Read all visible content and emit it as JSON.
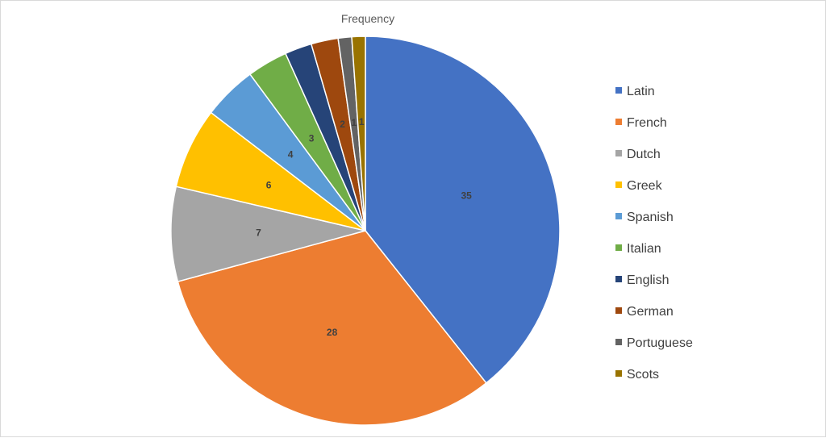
{
  "chart_data": {
    "type": "pie",
    "title": "Frequency",
    "categories": [
      "Latin",
      "French",
      "Dutch",
      "Greek",
      "Spanish",
      "Italian",
      "English",
      "German",
      "Portuguese",
      "Scots"
    ],
    "values": [
      35,
      28,
      7,
      6,
      4,
      3,
      2,
      2,
      1,
      1
    ],
    "data_labels": [
      "35",
      "28",
      "7",
      "6",
      "4",
      "3",
      "",
      "2",
      "1",
      "1"
    ],
    "colors": [
      "#4472c4",
      "#ed7d31",
      "#a5a5a5",
      "#ffc000",
      "#5b9bd5",
      "#70ad47",
      "#264478",
      "#9e480e",
      "#636363",
      "#997300"
    ],
    "legend_position": "right"
  }
}
